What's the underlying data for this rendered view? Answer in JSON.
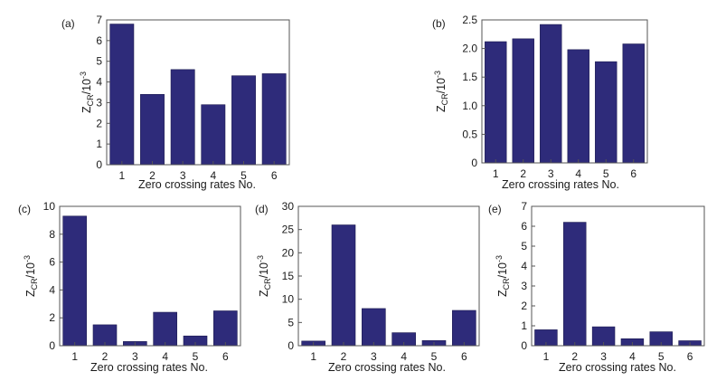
{
  "chart_data": [
    {
      "type": "bar",
      "panel": "(a)",
      "categories": [
        "1",
        "2",
        "3",
        "4",
        "5",
        "6"
      ],
      "values": [
        6.8,
        3.4,
        4.6,
        2.9,
        4.3,
        4.4
      ],
      "ylim": [
        0,
        7
      ],
      "yticks": [
        "0",
        "1",
        "2",
        "3",
        "4",
        "5",
        "6",
        "7"
      ],
      "xlabel": "Zero crossing rates No.",
      "ylabel": {
        "base": "Z",
        "sub": "CR",
        "tail": "/10",
        "sup": "-3"
      }
    },
    {
      "type": "bar",
      "panel": "(b)",
      "categories": [
        "1",
        "2",
        "3",
        "4",
        "5",
        "6"
      ],
      "values": [
        2.12,
        2.17,
        2.42,
        1.98,
        1.77,
        2.08
      ],
      "ylim": [
        0,
        2.5
      ],
      "yticks": [
        "0",
        "0.5",
        "1.0",
        "1.5",
        "2.0",
        "2.5"
      ],
      "xlabel": "Zero crossing rates No.",
      "ylabel": {
        "base": "Z",
        "sub": "CR",
        "tail": "/10",
        "sup": "-3"
      }
    },
    {
      "type": "bar",
      "panel": "(c)",
      "categories": [
        "1",
        "2",
        "3",
        "4",
        "5",
        "6"
      ],
      "values": [
        9.3,
        1.5,
        0.3,
        2.4,
        0.7,
        2.5
      ],
      "ylim": [
        0,
        10
      ],
      "yticks": [
        "0",
        "2",
        "4",
        "6",
        "8",
        "10"
      ],
      "xlabel": "Zero crossing rates No.",
      "ylabel": {
        "base": "Z",
        "sub": "CR",
        "tail": "/10",
        "sup": "-3"
      }
    },
    {
      "type": "bar",
      "panel": "(d)",
      "categories": [
        "1",
        "2",
        "3",
        "4",
        "5",
        "6"
      ],
      "values": [
        1.0,
        26.0,
        8.0,
        2.8,
        1.1,
        7.6
      ],
      "ylim": [
        0,
        30
      ],
      "yticks": [
        "0",
        "5",
        "10",
        "15",
        "20",
        "25",
        "30"
      ],
      "xlabel": "Zero crossing rates No.",
      "ylabel": {
        "base": "Z",
        "sub": "CR",
        "tail": "/10",
        "sup": "-3"
      }
    },
    {
      "type": "bar",
      "panel": "(e)",
      "categories": [
        "1",
        "2",
        "3",
        "4",
        "5",
        "6"
      ],
      "values": [
        0.8,
        6.2,
        0.95,
        0.35,
        0.7,
        0.25
      ],
      "ylim": [
        0,
        7
      ],
      "yticks": [
        "0",
        "1",
        "2",
        "3",
        "4",
        "5",
        "6",
        "7"
      ],
      "xlabel": "Zero crossing rates No.",
      "ylabel": {
        "base": "Z",
        "sub": "CR",
        "tail": "/10",
        "sup": "-3"
      }
    }
  ],
  "colors": {
    "bar": "#2e2b7a",
    "bar_stroke": "#1b1950",
    "axis": "#555555",
    "text": "#1a1a1a"
  }
}
